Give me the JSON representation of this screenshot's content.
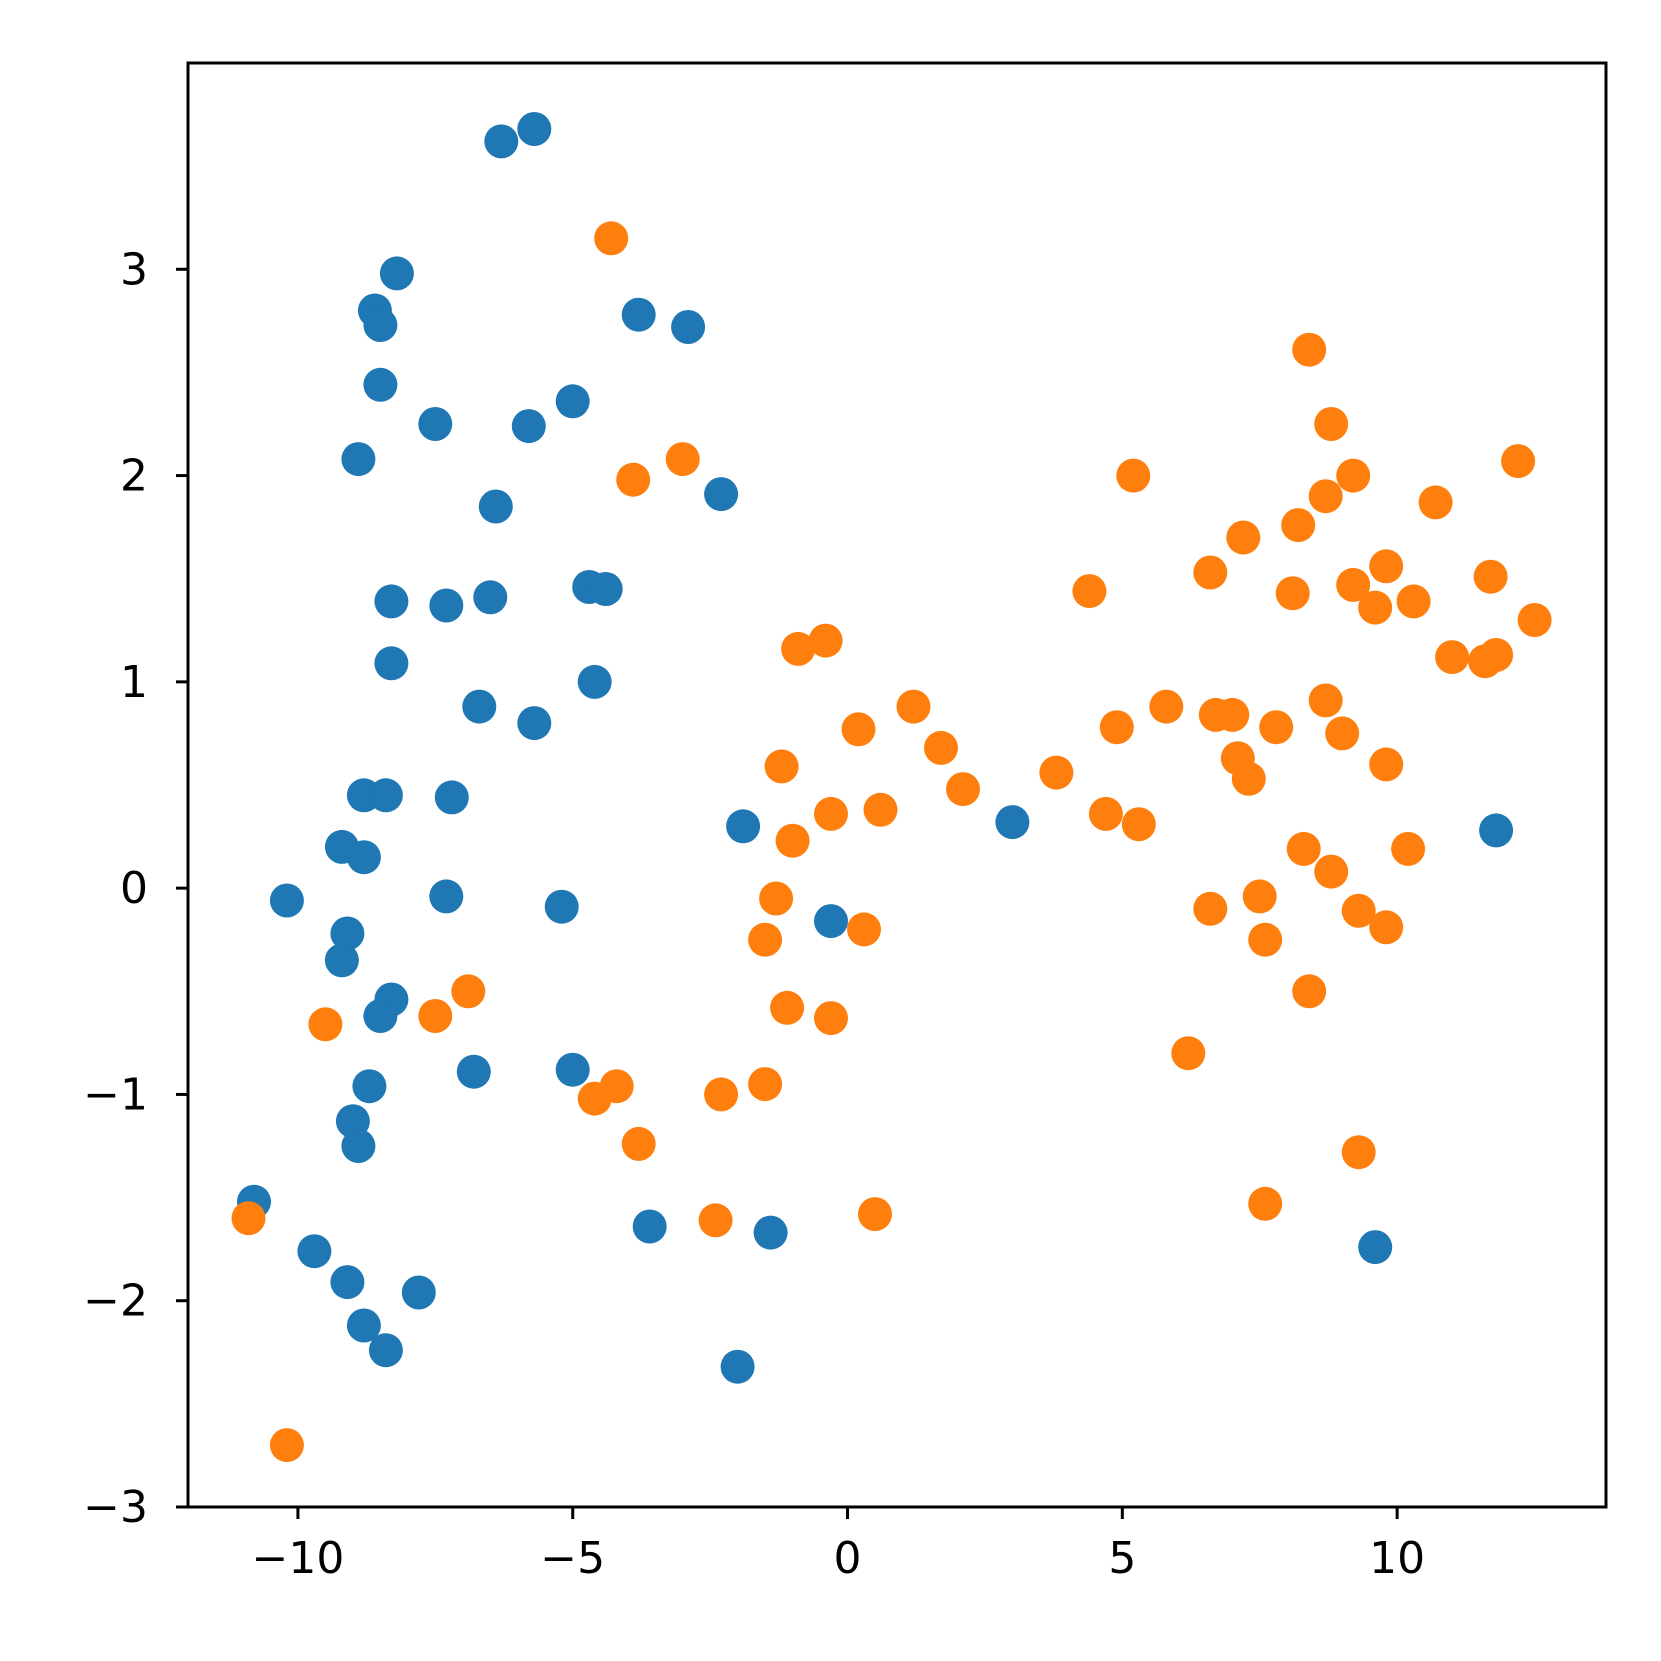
{
  "chart_data": {
    "type": "scatter",
    "title": "",
    "xlabel": "",
    "ylabel": "",
    "xlim": [
      -12,
      13.8
    ],
    "ylim": [
      -3.0,
      4.0
    ],
    "xticks": [
      -10,
      -5,
      0,
      5,
      10
    ],
    "xtick_labels": [
      "−10",
      "−5",
      "0",
      "5",
      "10"
    ],
    "yticks": [
      -3,
      -2,
      -1,
      0,
      1,
      2,
      3
    ],
    "ytick_labels": [
      "−3",
      "−2",
      "−1",
      "0",
      "1",
      "2",
      "3"
    ],
    "grid": false,
    "legend": "none",
    "series": [
      {
        "color": "#1f77b4",
        "points": [
          [
            -6.3,
            3.62
          ],
          [
            -5.7,
            3.68
          ],
          [
            -8.2,
            2.98
          ],
          [
            -8.6,
            2.8
          ],
          [
            -8.5,
            2.73
          ],
          [
            -3.8,
            2.78
          ],
          [
            -2.9,
            2.72
          ],
          [
            -8.5,
            2.44
          ],
          [
            -7.5,
            2.25
          ],
          [
            -5.8,
            2.24
          ],
          [
            -5.0,
            2.36
          ],
          [
            -8.9,
            2.08
          ],
          [
            -6.4,
            1.85
          ],
          [
            -2.3,
            1.91
          ],
          [
            -4.7,
            1.46
          ],
          [
            -4.4,
            1.45
          ],
          [
            -6.5,
            1.41
          ],
          [
            -7.3,
            1.37
          ],
          [
            -8.3,
            1.39
          ],
          [
            -8.3,
            1.09
          ],
          [
            -4.6,
            1.0
          ],
          [
            -6.7,
            0.88
          ],
          [
            -5.7,
            0.8
          ],
          [
            -8.8,
            0.45
          ],
          [
            -8.4,
            0.45
          ],
          [
            -7.2,
            0.44
          ],
          [
            -9.2,
            0.2
          ],
          [
            -8.8,
            0.15
          ],
          [
            -1.9,
            0.3
          ],
          [
            3.0,
            0.32
          ],
          [
            11.8,
            0.28
          ],
          [
            -10.2,
            -0.06
          ],
          [
            -7.3,
            -0.04
          ],
          [
            -5.2,
            -0.09
          ],
          [
            -0.3,
            -0.16
          ],
          [
            -9.1,
            -0.22
          ],
          [
            -9.2,
            -0.35
          ],
          [
            -8.3,
            -0.54
          ],
          [
            -8.5,
            -0.62
          ],
          [
            -6.8,
            -0.89
          ],
          [
            -5.0,
            -0.88
          ],
          [
            -8.7,
            -0.96
          ],
          [
            -9.0,
            -1.13
          ],
          [
            -8.9,
            -1.25
          ],
          [
            -10.8,
            -1.52
          ],
          [
            -9.7,
            -1.76
          ],
          [
            -9.1,
            -1.91
          ],
          [
            -7.8,
            -1.96
          ],
          [
            -8.8,
            -2.12
          ],
          [
            -8.4,
            -2.24
          ],
          [
            -3.6,
            -1.64
          ],
          [
            -1.4,
            -1.67
          ],
          [
            -2.0,
            -2.32
          ],
          [
            9.6,
            -1.74
          ]
        ]
      },
      {
        "color": "#ff7f0e",
        "points": [
          [
            -4.3,
            3.15
          ],
          [
            -3.9,
            1.98
          ],
          [
            -3.0,
            2.08
          ],
          [
            -0.9,
            1.16
          ],
          [
            -0.4,
            1.2
          ],
          [
            0.2,
            0.77
          ],
          [
            1.2,
            0.88
          ],
          [
            1.7,
            0.68
          ],
          [
            -1.2,
            0.59
          ],
          [
            2.1,
            0.48
          ],
          [
            -0.3,
            0.36
          ],
          [
            0.6,
            0.38
          ],
          [
            -1.0,
            0.23
          ],
          [
            -1.3,
            -0.05
          ],
          [
            -1.5,
            -0.25
          ],
          [
            0.3,
            -0.2
          ],
          [
            -1.1,
            -0.58
          ],
          [
            -0.3,
            -0.63
          ],
          [
            -9.5,
            -0.66
          ],
          [
            -7.5,
            -0.62
          ],
          [
            -6.9,
            -0.5
          ],
          [
            -4.6,
            -1.02
          ],
          [
            -4.2,
            -0.96
          ],
          [
            -2.3,
            -1.0
          ],
          [
            -1.5,
            -0.95
          ],
          [
            -3.8,
            -1.24
          ],
          [
            -2.4,
            -1.61
          ],
          [
            0.5,
            -1.58
          ],
          [
            -10.9,
            -1.6
          ],
          [
            -10.2,
            -2.7
          ],
          [
            5.2,
            2.0
          ],
          [
            4.4,
            1.44
          ],
          [
            3.8,
            0.56
          ],
          [
            4.9,
            0.78
          ],
          [
            5.8,
            0.88
          ],
          [
            4.7,
            0.36
          ],
          [
            5.3,
            0.31
          ],
          [
            6.6,
            1.53
          ],
          [
            7.2,
            1.7
          ],
          [
            6.7,
            0.84
          ],
          [
            7.0,
            0.84
          ],
          [
            7.1,
            0.63
          ],
          [
            7.3,
            0.53
          ],
          [
            7.8,
            0.78
          ],
          [
            8.4,
            2.61
          ],
          [
            8.8,
            2.25
          ],
          [
            9.2,
            2.0
          ],
          [
            8.7,
            1.9
          ],
          [
            8.2,
            1.76
          ],
          [
            8.1,
            1.43
          ],
          [
            9.2,
            1.47
          ],
          [
            9.6,
            1.36
          ],
          [
            9.8,
            1.56
          ],
          [
            10.3,
            1.39
          ],
          [
            10.7,
            1.87
          ],
          [
            11.0,
            1.12
          ],
          [
            11.6,
            1.1
          ],
          [
            11.7,
            1.51
          ],
          [
            11.8,
            1.13
          ],
          [
            12.2,
            2.07
          ],
          [
            12.5,
            1.3
          ],
          [
            8.7,
            0.91
          ],
          [
            9.0,
            0.75
          ],
          [
            9.8,
            0.6
          ],
          [
            8.3,
            0.19
          ],
          [
            8.8,
            0.08
          ],
          [
            10.2,
            0.19
          ],
          [
            6.6,
            -0.1
          ],
          [
            7.5,
            -0.04
          ],
          [
            7.6,
            -0.25
          ],
          [
            9.3,
            -0.11
          ],
          [
            9.8,
            -0.19
          ],
          [
            8.4,
            -0.5
          ],
          [
            6.2,
            -0.8
          ],
          [
            7.6,
            -1.53
          ],
          [
            9.3,
            -1.28
          ]
        ]
      }
    ]
  }
}
